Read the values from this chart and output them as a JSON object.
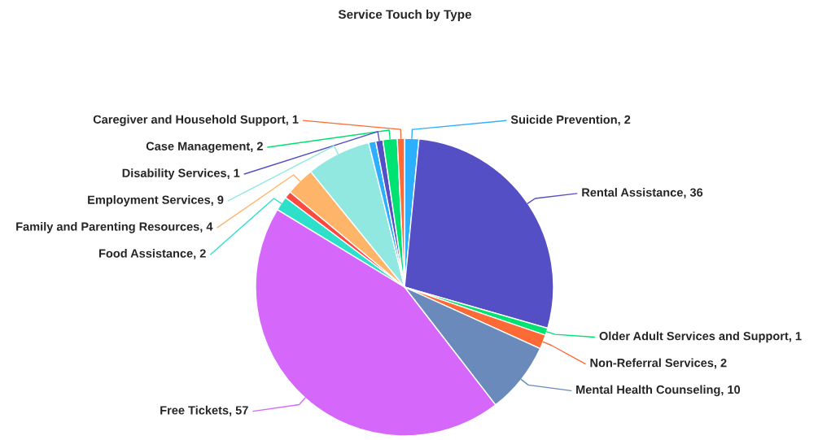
{
  "chart_data": {
    "type": "pie",
    "title": "Service Touch by Type",
    "categories": [
      "Suicide Prevention",
      "Rental Assistance",
      "Older Adult Services and Support",
      "Non-Referral Services",
      "Mental Health Counseling",
      "Free Tickets",
      "Food Assistance",
      null,
      "Family and Parenting Resources",
      "Employment Services",
      null,
      "Disability Services",
      "Case Management",
      "Caregiver and Household Support"
    ],
    "values": [
      2,
      36,
      1,
      2,
      10,
      57,
      2,
      1,
      4,
      9,
      1,
      1,
      2,
      1
    ],
    "colors": [
      "#2caffe",
      "#544fc5",
      "#00e272",
      "#fe6a35",
      "#6b8abc",
      "#d568fb",
      "#2ee0ca",
      "#fa4b42",
      "#feb56a",
      "#91e8e1",
      "#2caffe",
      "#544fc5",
      "#00e272",
      "#fe6a35"
    ],
    "value_labels": [
      "2",
      "36",
      "1",
      "2",
      "10",
      "57",
      "2",
      null,
      "4",
      "9",
      null,
      "1",
      "2",
      "1"
    ]
  }
}
